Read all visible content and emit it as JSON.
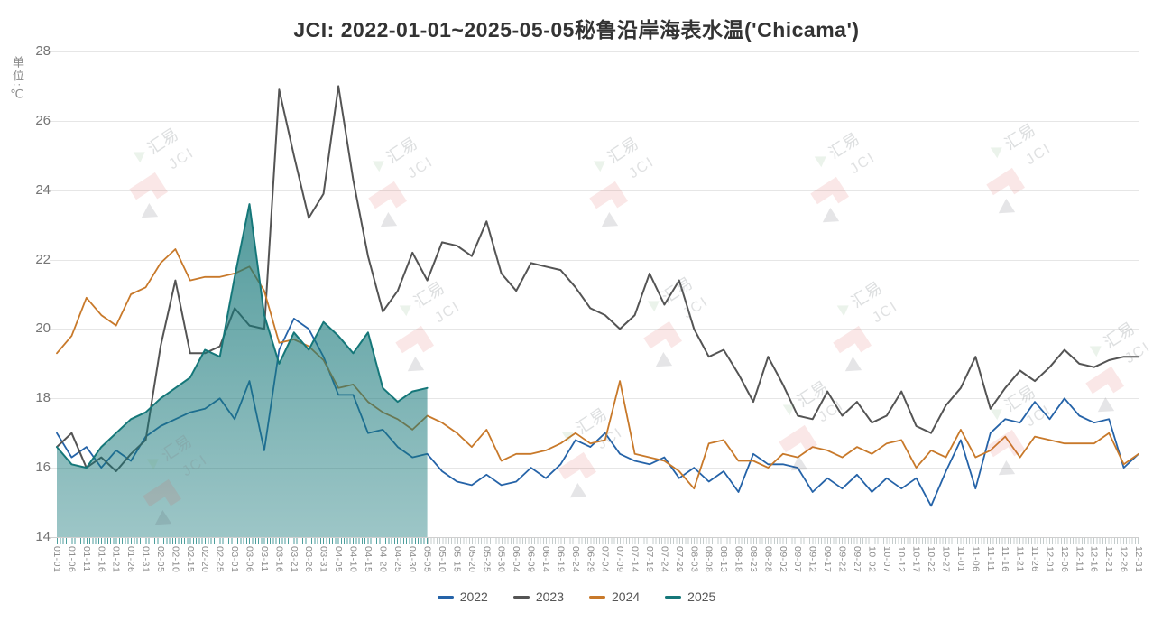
{
  "title": "JCI: 2022-01-01~2025-05-05秘鲁沿岸海表水温('Chicama')",
  "y_axis": {
    "unit_label": "单位:℃"
  },
  "watermark": {
    "text_cn": "汇易",
    "text_en": "JCI",
    "logo_color": "#d9534f",
    "text_color": "#888e92"
  },
  "colors": {
    "background": "#ffffff",
    "grid": "#e6e6e6",
    "axis_line": "#cfcfcf",
    "title_text": "#333333",
    "tick_text": "#8c8c8c"
  },
  "chart_data": {
    "type": "line",
    "title": "JCI: 2022-01-01~2025-05-05秘鲁沿岸海表水温('Chicama')",
    "xlabel": "",
    "ylabel": "单位:℃",
    "ylim": [
      14,
      28
    ],
    "y_ticks": [
      28,
      26,
      24,
      22,
      20,
      18,
      16,
      14
    ],
    "grid": true,
    "legend_position": "bottom",
    "x": [
      "01-01",
      "01-06",
      "01-11",
      "01-16",
      "01-21",
      "01-26",
      "01-31",
      "02-05",
      "02-10",
      "02-15",
      "02-20",
      "02-25",
      "03-01",
      "03-06",
      "03-11",
      "03-16",
      "03-21",
      "03-26",
      "03-31",
      "04-05",
      "04-10",
      "04-15",
      "04-20",
      "04-25",
      "04-30",
      "05-05",
      "05-10",
      "05-15",
      "05-20",
      "05-25",
      "05-30",
      "06-04",
      "06-09",
      "06-14",
      "06-19",
      "06-24",
      "06-29",
      "07-04",
      "07-09",
      "07-14",
      "07-19",
      "07-24",
      "07-29",
      "08-03",
      "08-08",
      "08-13",
      "08-18",
      "08-23",
      "08-28",
      "09-02",
      "09-07",
      "09-12",
      "09-17",
      "09-22",
      "09-27",
      "10-02",
      "10-07",
      "10-12",
      "10-17",
      "10-22",
      "10-27",
      "11-01",
      "11-06",
      "11-11",
      "11-16",
      "11-21",
      "11-26",
      "12-01",
      "12-06",
      "12-11",
      "12-16",
      "12-21",
      "12-26",
      "12-31"
    ],
    "series": [
      {
        "name": "2022",
        "color": "#2563a8",
        "style": "line",
        "values": [
          17.0,
          16.3,
          16.6,
          16.0,
          16.5,
          16.2,
          16.9,
          17.2,
          17.4,
          17.6,
          17.7,
          18.0,
          17.4,
          18.5,
          16.5,
          19.4,
          20.3,
          20.0,
          19.2,
          18.1,
          18.1,
          17.0,
          17.1,
          16.6,
          16.3,
          16.4,
          15.9,
          15.6,
          15.5,
          15.8,
          15.5,
          15.6,
          16.0,
          15.7,
          16.1,
          16.8,
          16.6,
          17.0,
          16.4,
          16.2,
          16.1,
          16.3,
          15.7,
          16.0,
          15.6,
          15.9,
          15.3,
          16.4,
          16.1,
          16.1,
          16.0,
          15.3,
          15.7,
          15.4,
          15.8,
          15.3,
          15.7,
          15.4,
          15.7,
          14.9,
          15.9,
          16.8,
          15.4,
          17.0,
          17.4,
          17.3,
          17.9,
          17.4,
          18.0,
          17.5,
          17.3,
          17.4,
          16.0,
          16.4
        ]
      },
      {
        "name": "2023",
        "color": "#545454",
        "style": "line",
        "values": [
          16.6,
          17.0,
          16.0,
          16.3,
          15.9,
          16.4,
          16.8,
          19.5,
          21.4,
          19.3,
          19.3,
          19.5,
          20.6,
          20.1,
          20.0,
          26.9,
          25.0,
          23.2,
          23.9,
          27.0,
          24.3,
          22.1,
          20.5,
          21.1,
          22.2,
          21.4,
          22.5,
          22.4,
          22.1,
          23.1,
          21.6,
          21.1,
          21.9,
          21.8,
          21.7,
          21.2,
          20.6,
          20.4,
          20.0,
          20.4,
          21.6,
          20.7,
          21.4,
          20.0,
          19.2,
          19.4,
          18.7,
          17.9,
          19.2,
          18.4,
          17.5,
          17.4,
          18.2,
          17.5,
          17.9,
          17.3,
          17.5,
          18.2,
          17.2,
          17.0,
          17.8,
          18.3,
          19.2,
          17.7,
          18.3,
          18.8,
          18.5,
          18.9,
          19.4,
          19.0,
          18.9,
          19.1,
          19.2,
          19.2
        ]
      },
      {
        "name": "2024",
        "color": "#c8792a",
        "style": "line",
        "values": [
          19.3,
          19.8,
          20.9,
          20.4,
          20.1,
          21.0,
          21.2,
          21.9,
          22.3,
          21.4,
          21.5,
          21.5,
          21.6,
          21.8,
          21.1,
          19.6,
          19.7,
          19.5,
          19.1,
          18.3,
          18.4,
          17.9,
          17.6,
          17.4,
          17.1,
          17.5,
          17.3,
          17.0,
          16.6,
          17.1,
          16.2,
          16.4,
          16.4,
          16.5,
          16.7,
          17.0,
          16.7,
          16.8,
          18.5,
          16.4,
          16.3,
          16.2,
          15.9,
          15.4,
          16.7,
          16.8,
          16.2,
          16.2,
          16.0,
          16.4,
          16.3,
          16.6,
          16.5,
          16.3,
          16.6,
          16.4,
          16.7,
          16.8,
          16.0,
          16.5,
          16.3,
          17.1,
          16.3,
          16.5,
          16.9,
          16.3,
          16.9,
          16.8,
          16.7,
          16.7,
          16.7,
          17.0,
          16.1,
          16.4
        ]
      },
      {
        "name": "2025",
        "color": "#157779",
        "style": "area",
        "ends_at": "05-05",
        "fill_top": "rgba(21,119,121,0.88)",
        "fill_bottom": "rgba(21,119,121,0.42)",
        "values": [
          16.6,
          16.1,
          16.0,
          16.6,
          17.0,
          17.4,
          17.6,
          18.0,
          18.3,
          18.6,
          19.4,
          19.2,
          21.5,
          23.6,
          20.4,
          19.0,
          19.9,
          19.4,
          20.2,
          19.8,
          19.3,
          19.9,
          18.3,
          17.9,
          18.2,
          18.3
        ]
      }
    ]
  }
}
